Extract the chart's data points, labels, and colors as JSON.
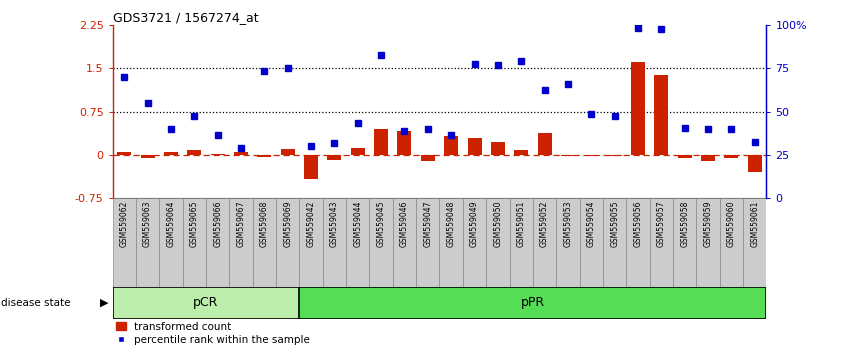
{
  "title": "GDS3721 / 1567274_at",
  "samples": [
    "GSM559062",
    "GSM559063",
    "GSM559064",
    "GSM559065",
    "GSM559066",
    "GSM559067",
    "GSM559068",
    "GSM559069",
    "GSM559042",
    "GSM559043",
    "GSM559044",
    "GSM559045",
    "GSM559046",
    "GSM559047",
    "GSM559048",
    "GSM559049",
    "GSM559050",
    "GSM559051",
    "GSM559052",
    "GSM559053",
    "GSM559054",
    "GSM559055",
    "GSM559056",
    "GSM559057",
    "GSM559058",
    "GSM559059",
    "GSM559060",
    "GSM559061"
  ],
  "transformed_count": [
    0.05,
    -0.05,
    0.05,
    0.08,
    0.02,
    0.05,
    -0.03,
    0.1,
    -0.42,
    -0.08,
    0.12,
    0.45,
    0.42,
    -0.1,
    0.32,
    0.3,
    0.22,
    0.08,
    0.38,
    -0.02,
    -0.02,
    -0.02,
    1.6,
    1.38,
    -0.05,
    -0.1,
    -0.05,
    -0.3
  ],
  "percentile_rank": [
    1.35,
    0.9,
    0.45,
    0.67,
    0.35,
    0.12,
    1.45,
    1.5,
    0.15,
    0.2,
    0.55,
    1.72,
    0.42,
    0.45,
    0.35,
    1.58,
    1.55,
    1.62,
    1.12,
    1.22,
    0.7,
    0.67,
    2.2,
    2.18,
    0.46,
    0.44,
    0.44,
    0.22
  ],
  "pcr_count": 8,
  "ppr_count": 20,
  "ylim_left": [
    -0.75,
    2.25
  ],
  "ylim_right": [
    0,
    100
  ],
  "yticks_left": [
    -0.75,
    0.0,
    0.75,
    1.5,
    2.25
  ],
  "yticks_right": [
    0,
    25,
    50,
    75,
    100
  ],
  "hlines": [
    0.75,
    1.5
  ],
  "bar_color": "#cc2200",
  "dot_color": "#0000cc",
  "pcr_color": "#bbeeaa",
  "ppr_color": "#55dd55",
  "bg_color": "#cccccc",
  "zero_line_color": "#cc2200",
  "legend_dot_label": "percentile rank within the sample",
  "legend_bar_label": "transformed count"
}
